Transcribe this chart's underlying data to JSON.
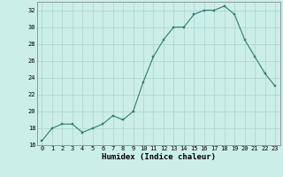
{
  "x": [
    0,
    1,
    2,
    3,
    4,
    5,
    6,
    7,
    8,
    9,
    10,
    11,
    12,
    13,
    14,
    15,
    16,
    17,
    18,
    19,
    20,
    21,
    22,
    23
  ],
  "y": [
    16.5,
    18.0,
    18.5,
    18.5,
    17.5,
    18.0,
    18.5,
    19.5,
    19.0,
    20.0,
    23.5,
    26.5,
    28.5,
    30.0,
    30.0,
    31.5,
    32.0,
    32.0,
    32.5,
    31.5,
    28.5,
    26.5,
    24.5,
    23.0
  ],
  "line_color": "#2e7d6e",
  "marker": "s",
  "marker_size": 1.8,
  "bg_color": "#cceee8",
  "grid_color": "#aad4ce",
  "xlabel": "Humidex (Indice chaleur)",
  "xlim": [
    -0.5,
    23.5
  ],
  "ylim": [
    16,
    33
  ],
  "yticks": [
    16,
    18,
    20,
    22,
    24,
    26,
    28,
    30,
    32
  ],
  "xticks": [
    0,
    1,
    2,
    3,
    4,
    5,
    6,
    7,
    8,
    9,
    10,
    11,
    12,
    13,
    14,
    15,
    16,
    17,
    18,
    19,
    20,
    21,
    22,
    23
  ],
  "tick_fontsize": 5.0,
  "xlabel_fontsize": 6.5,
  "line_width": 0.8
}
